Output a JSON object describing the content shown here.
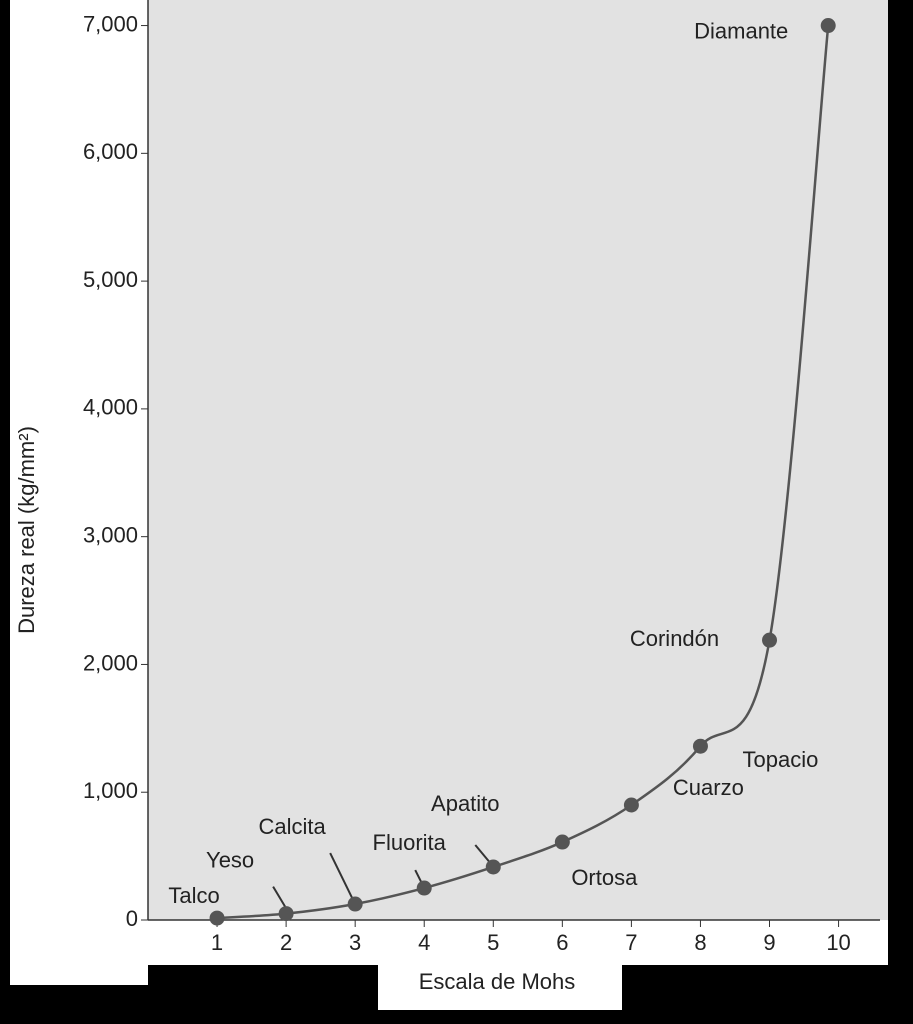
{
  "chart_data": {
    "type": "scatter",
    "x_label": "Escala de Mohs",
    "y_label": "Dureza real (kg/mm²)",
    "x": [
      1,
      2,
      3,
      4,
      5,
      6,
      7,
      8,
      9,
      9.85
    ],
    "values": [
      15,
      50,
      125,
      250,
      415,
      610,
      900,
      1360,
      2190,
      7000
    ],
    "point_labels": [
      "Talco",
      "Yeso",
      "Calcita",
      "Fluorita",
      "Apatito",
      "Ortosa",
      "Cuarzo",
      "Topacio",
      "Corindón",
      "Diamante"
    ],
    "color": "#555555",
    "xlim": [
      0,
      10.6
    ],
    "xticks": [
      1,
      2,
      3,
      4,
      5,
      6,
      7,
      8,
      9,
      10
    ],
    "ylim": [
      0,
      7200
    ],
    "yticks": [
      0,
      {
        "value": 1000,
        "label": "1,000"
      },
      {
        "value": 2000,
        "label": "2,000"
      },
      {
        "value": 3000,
        "label": "3,000"
      },
      {
        "value": 4000,
        "label": "4,000"
      },
      {
        "value": 5000,
        "label": "5,000"
      },
      {
        "value": 6000,
        "label": "6,000"
      },
      {
        "value": 7000,
        "label": "7,000"
      }
    ]
  }
}
